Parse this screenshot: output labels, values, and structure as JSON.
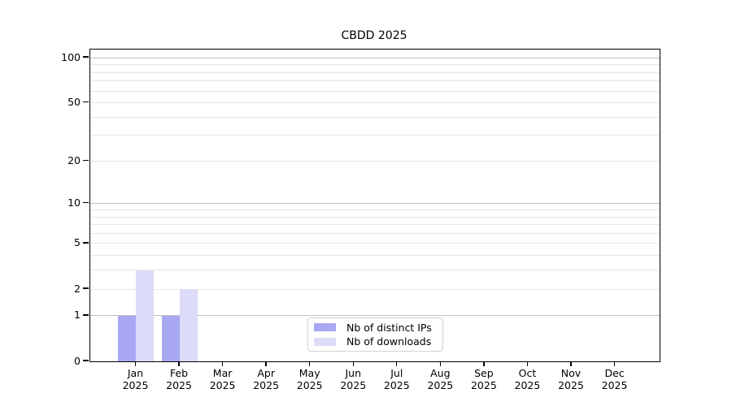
{
  "chart_data": {
    "type": "bar",
    "title": "CBDD 2025",
    "categories": [
      "Jan 2025",
      "Feb 2025",
      "Mar 2025",
      "Apr 2025",
      "May 2025",
      "Jun 2025",
      "Jul 2025",
      "Aug 2025",
      "Sep 2025",
      "Oct 2025",
      "Nov 2025",
      "Dec 2025"
    ],
    "series": [
      {
        "name": "Nb of distinct IPs",
        "color": "#a8a8f2",
        "values": [
          1,
          1,
          0,
          0,
          0,
          0,
          0,
          0,
          0,
          0,
          0,
          0
        ]
      },
      {
        "name": "Nb of downloads",
        "color": "#dcdcf8",
        "values": [
          3,
          2,
          0,
          0,
          0,
          0,
          0,
          0,
          0,
          0,
          0,
          0
        ]
      }
    ],
    "yscale": "log1p",
    "ylim": [
      0,
      113
    ],
    "y_tick_labels": [
      "0",
      "1",
      "2",
      "5",
      "10",
      "20",
      "50",
      "100"
    ],
    "y_tick_values": [
      0,
      1,
      2,
      5,
      10,
      20,
      50,
      100
    ],
    "y_major_grid_values": [
      1,
      10,
      100
    ],
    "y_minor_grid_values": [
      2,
      3,
      4,
      5,
      6,
      7,
      8,
      9,
      20,
      30,
      40,
      50,
      60,
      70,
      80,
      90
    ],
    "grid": true,
    "legend_position": "inside-bottom-center"
  },
  "colors": {
    "major_grid": "#c0c0c0",
    "minor_grid": "#e6e6e6",
    "spine": "#000000",
    "legend_border": "#d2d2d2",
    "background": "#ffffff"
  }
}
